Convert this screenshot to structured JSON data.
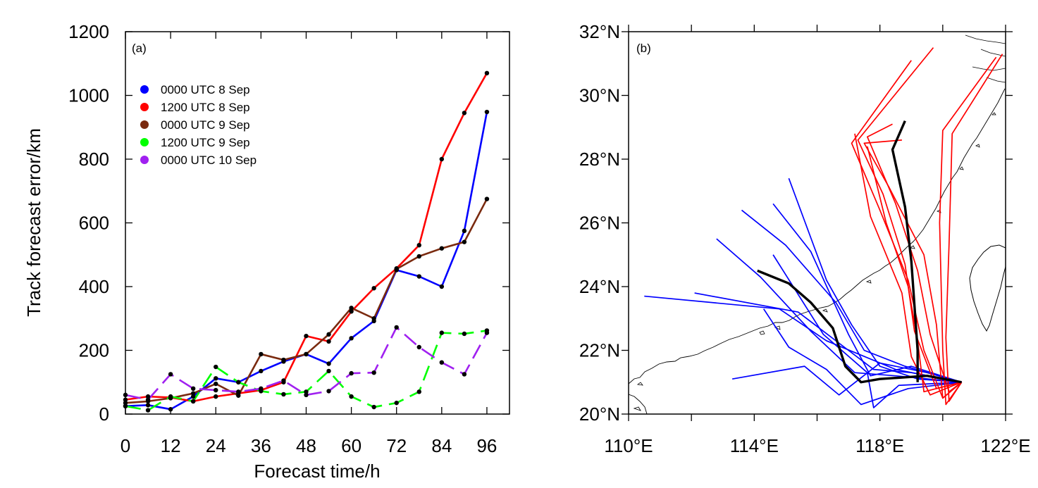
{
  "chart_data": [
    {
      "type": "line",
      "panel_label": "(a)",
      "xlabel": "Forecast time/h",
      "ylabel": "Track forecast error/km",
      "xlim": [
        0,
        102
      ],
      "ylim": [
        0,
        1200
      ],
      "xticks": [
        0,
        12,
        24,
        36,
        48,
        60,
        72,
        84,
        96
      ],
      "yticks": [
        0,
        200,
        400,
        600,
        800,
        1000,
        1200
      ],
      "grid": false,
      "legend_position": "top-left",
      "x": [
        0,
        6,
        12,
        18,
        24,
        30,
        36,
        42,
        48,
        54,
        60,
        66,
        72,
        78,
        84,
        90,
        96
      ],
      "series": [
        {
          "name": "0000 UTC 8 Sep",
          "color": "#0000ff",
          "style": "solid",
          "values": [
            25,
            28,
            15,
            55,
            112,
            100,
            135,
            165,
            188,
            158,
            238,
            292,
            452,
            432,
            400,
            575,
            948
          ]
        },
        {
          "name": "1200 UTC 8 Sep",
          "color": "#ff0000",
          "style": "solid",
          "values": [
            45,
            55,
            52,
            40,
            55,
            65,
            75,
            100,
            245,
            228,
            322,
            395,
            457,
            530,
            800,
            945,
            1070
          ]
        },
        {
          "name": "0000 UTC 9 Sep",
          "color": "#7a2a0f",
          "style": "solid",
          "values": [
            35,
            40,
            50,
            65,
            95,
            58,
            188,
            170,
            188,
            250,
            333,
            300,
            455,
            495,
            520,
            540,
            675
          ]
        },
        {
          "name": "1200 UTC 9 Sep",
          "color": "#00ff00",
          "style": "dashed",
          "values": [
            25,
            12,
            55,
            40,
            148,
            100,
            72,
            62,
            70,
            135,
            55,
            22,
            35,
            70,
            255,
            252,
            262
          ]
        },
        {
          "name": "0000 UTC 10 Sep",
          "color": "#a020f0",
          "style": "dashed",
          "values": [
            60,
            45,
            125,
            80,
            75,
            70,
            80,
            105,
            60,
            72,
            128,
            130,
            272,
            210,
            162,
            125,
            255
          ]
        }
      ]
    },
    {
      "type": "line",
      "panel_label": "(b)",
      "xlim": [
        110,
        122
      ],
      "ylim": [
        20,
        32
      ],
      "xticks": [
        110,
        114,
        118,
        122
      ],
      "xtick_labels": [
        "110°E",
        "114°E",
        "118°E",
        "122°E"
      ],
      "yticks": [
        20,
        22,
        24,
        26,
        28,
        30,
        32
      ],
      "ytick_labels": [
        "20°N",
        "22°N",
        "24°N",
        "26°N",
        "28°N",
        "30°N",
        "32°N"
      ],
      "grid": false,
      "series": [
        {
          "color": "#000000",
          "style": "solid-thick",
          "kind": "observed track",
          "x": [
            120.6,
            119.5,
            118.0,
            117.4,
            116.9,
            116.5,
            115.8,
            115.1,
            114.1
          ],
          "y": [
            21.0,
            21.2,
            21.1,
            21.0,
            21.5,
            22.7,
            23.5,
            24.1,
            24.5
          ]
        },
        {
          "color": "#000000",
          "style": "solid-thick",
          "kind": "observed track",
          "x": [
            119.2,
            119.2,
            119.0,
            118.8,
            118.4,
            118.8
          ],
          "y": [
            21.0,
            22.0,
            24.8,
            26.5,
            28.3,
            29.2
          ]
        },
        {
          "color": "#0000ff",
          "style": "solid",
          "x": [
            120.6,
            118.5,
            116.3,
            114.8,
            110.5
          ],
          "y": [
            21.0,
            21.4,
            22.3,
            23.3,
            23.7
          ]
        },
        {
          "color": "#0000ff",
          "style": "solid",
          "x": [
            120.6,
            119.0,
            117.8,
            117.0,
            115.4,
            112.1
          ],
          "y": [
            21.0,
            21.3,
            21.4,
            22.0,
            23.2,
            23.8
          ]
        },
        {
          "color": "#0000ff",
          "style": "solid",
          "x": [
            120.6,
            118.5,
            117.2,
            115.8,
            114.2,
            112.8
          ],
          "y": [
            21.0,
            21.2,
            21.3,
            22.6,
            24.3,
            25.5
          ]
        },
        {
          "color": "#0000ff",
          "style": "solid",
          "x": [
            120.6,
            118.8,
            117.5,
            116.6,
            115.0,
            113.6
          ],
          "y": [
            21.0,
            21.5,
            22.0,
            23.5,
            25.3,
            26.4
          ]
        },
        {
          "color": "#0000ff",
          "style": "solid",
          "x": [
            120.6,
            119.2,
            118.0,
            117.1,
            116.3,
            115.1
          ],
          "y": [
            21.0,
            21.1,
            21.5,
            22.8,
            24.2,
            27.4
          ]
        },
        {
          "color": "#0000ff",
          "style": "solid",
          "x": [
            120.6,
            119.0,
            117.7,
            117.0,
            115.8,
            114.6
          ],
          "y": [
            21.0,
            21.5,
            21.2,
            22.5,
            25.1,
            26.6
          ]
        },
        {
          "color": "#0000ff",
          "style": "solid",
          "x": [
            120.6,
            118.6,
            117.8,
            117.6,
            116.2,
            114.6
          ],
          "y": [
            21.0,
            20.9,
            20.2,
            21.3,
            22.5,
            25.0
          ]
        },
        {
          "color": "#0000ff",
          "style": "solid",
          "x": [
            120.6,
            119.5,
            118.0,
            116.7,
            115.6,
            113.3
          ],
          "y": [
            21.0,
            21.3,
            21.6,
            20.6,
            21.5,
            21.1
          ]
        },
        {
          "color": "#0000ff",
          "style": "solid",
          "x": [
            120.6,
            118.9,
            117.4,
            116.3,
            115.1,
            114.3
          ],
          "y": [
            21.0,
            20.8,
            20.3,
            21.4,
            22.1,
            23.3
          ]
        },
        {
          "color": "#ff0000",
          "style": "solid",
          "x": [
            120.6,
            120.0,
            119.4,
            118.9,
            118.0,
            117.1,
            119.0
          ],
          "y": [
            21.0,
            20.5,
            22.0,
            24.2,
            26.4,
            28.5,
            31.1
          ]
        },
        {
          "color": "#ff0000",
          "style": "solid",
          "x": [
            120.6,
            119.8,
            119.1,
            118.8,
            118.1,
            117.3,
            119.7
          ],
          "y": [
            21.0,
            20.8,
            22.6,
            24.7,
            26.9,
            28.6,
            31.5
          ]
        },
        {
          "color": "#ff0000",
          "style": "solid",
          "x": [
            120.6,
            120.2,
            119.6,
            119.2,
            118.5,
            117.6,
            118.4
          ],
          "y": [
            21.0,
            20.7,
            22.5,
            24.5,
            26.6,
            28.7,
            29.1
          ]
        },
        {
          "color": "#ff0000",
          "style": "solid",
          "x": [
            120.6,
            119.6,
            119.0,
            118.7,
            117.7,
            117.2
          ],
          "y": [
            21.0,
            20.6,
            21.8,
            23.8,
            26.2,
            28.8
          ]
        },
        {
          "color": "#ff0000",
          "style": "solid",
          "x": [
            120.6,
            120.0,
            119.8,
            119.4,
            118.3,
            117.5,
            118.7
          ],
          "y": [
            21.0,
            20.5,
            22.8,
            25.0,
            27.1,
            28.5,
            28.6
          ]
        },
        {
          "color": "#ff0000",
          "style": "solid",
          "x": [
            120.6,
            119.4,
            119.2,
            118.9,
            118.2,
            117.6
          ],
          "y": [
            21.0,
            20.7,
            22.3,
            24.0,
            26.0,
            28.4
          ]
        },
        {
          "color": "#ff0000",
          "style": "solid",
          "x": [
            120.6,
            120.1,
            120.0,
            119.9,
            120.0,
            121.7
          ],
          "y": [
            21.0,
            20.3,
            22.0,
            26.0,
            28.9,
            31.2
          ]
        },
        {
          "color": "#ff0000",
          "style": "solid",
          "x": [
            120.6,
            120.2,
            120.1,
            120.2,
            120.3,
            121.9
          ],
          "y": [
            21.0,
            20.4,
            22.4,
            25.3,
            28.8,
            31.3
          ]
        }
      ]
    }
  ]
}
